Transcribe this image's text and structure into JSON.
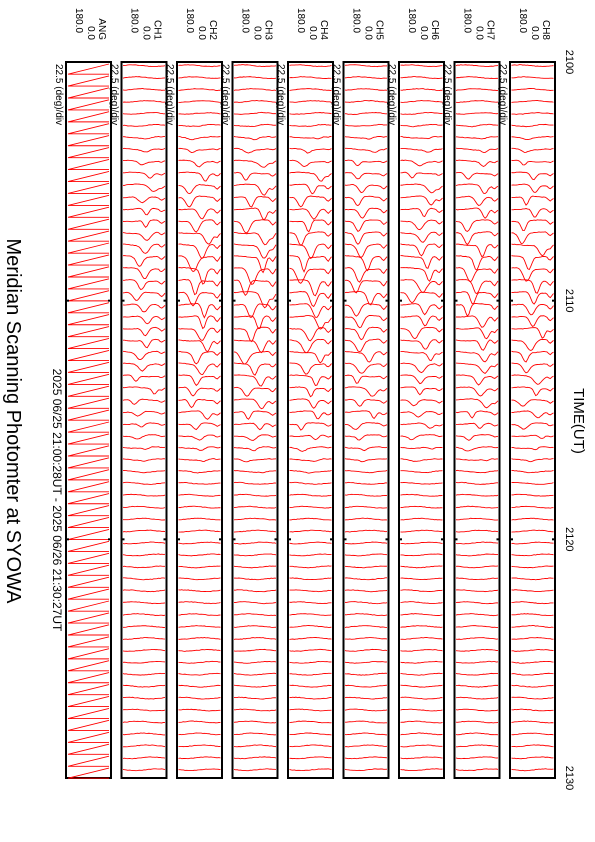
{
  "chart_data": {
    "type": "line",
    "title": "Meridian Scanning Photomter at SYOWA",
    "subtitle": "2025 06/25 21:00:28UT - 2025 06/26 21:30:27UT",
    "xlabel": "TIME(UT)",
    "xlim": [
      2100,
      2130
    ],
    "xticks": [
      "2100",
      "2110",
      "2120",
      "2130"
    ],
    "line_color": "#ff0000",
    "panels": [
      {
        "channel": "ANG",
        "scale": "22.5 (deg)/div",
        "y_top": "180.0",
        "y_bottom": "0.0",
        "kind": "angle"
      },
      {
        "channel": "CH1",
        "scale": "22.5 (deg)/div",
        "y_top": "180.0",
        "y_bottom": "0.0",
        "kind": "aurora",
        "amp": 0.6
      },
      {
        "channel": "CH2",
        "scale": "22.5 (deg)/div",
        "y_top": "180.0",
        "y_bottom": "0.0",
        "kind": "aurora",
        "amp": 0.95
      },
      {
        "channel": "CH3",
        "scale": "22.5 (deg)/div",
        "y_top": "180.0",
        "y_bottom": "0.0",
        "kind": "aurora",
        "amp": 1.0
      },
      {
        "channel": "CH4",
        "scale": "22.5 (deg)/div",
        "y_top": "180.0",
        "y_bottom": "0.0",
        "kind": "aurora",
        "amp": 0.95
      },
      {
        "channel": "CH5",
        "scale": "22.5 (deg)/div",
        "y_top": "180.0",
        "y_bottom": "0.0",
        "kind": "aurora",
        "amp": 0.85
      },
      {
        "channel": "CH6",
        "scale": "22.5 (deg)/div",
        "y_top": "180.0",
        "y_bottom": "0.0",
        "kind": "aurora",
        "amp": 0.75
      },
      {
        "channel": "CH7",
        "scale": "22.5 (deg)/div",
        "y_top": "180.0",
        "y_bottom": "0.0",
        "kind": "aurora",
        "amp": 0.85
      },
      {
        "channel": "CH8",
        "scale": "22.5 (deg)/div",
        "y_top": "180.0",
        "y_bottom": "0.0",
        "kind": "aurora",
        "amp": 0.8
      }
    ],
    "events": [
      {
        "t": 2105.5,
        "strength": 0.7
      },
      {
        "t": 2108.5,
        "strength": 1.0
      },
      {
        "t": 2111.3,
        "strength": 0.8
      },
      {
        "t": 2114.3,
        "strength": 0.55
      }
    ],
    "grid": false
  }
}
